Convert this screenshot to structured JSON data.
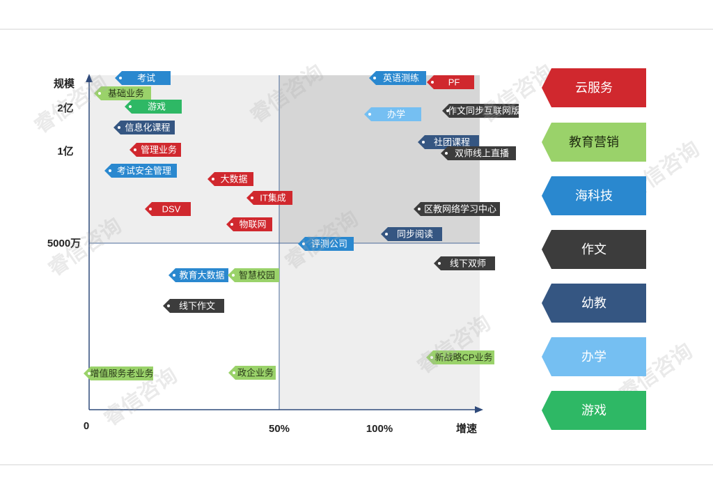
{
  "chart_data": {
    "type": "scatter",
    "title": "",
    "xlabel": "增速",
    "ylabel": "规模",
    "x_ticks": [
      "0",
      "50%",
      "100%"
    ],
    "y_ticks": [
      "5000万",
      "1亿",
      "2亿"
    ],
    "divider_x": "50%",
    "divider_y": "5000万",
    "grid": false,
    "legend_position": "right",
    "categories": [
      {
        "name": "云服务",
        "color": "#d0282e"
      },
      {
        "name": "教育营销",
        "color": "#9ad26a"
      },
      {
        "name": "海科技",
        "color": "#2a88cf"
      },
      {
        "name": "作文",
        "color": "#3c3c3c"
      },
      {
        "name": "幼教",
        "color": "#355682"
      },
      {
        "name": "办学",
        "color": "#75bff2"
      },
      {
        "name": "游戏",
        "color": "#2eb865"
      }
    ],
    "points": [
      {
        "label": "考试",
        "category": "海科技"
      },
      {
        "label": "基础业务",
        "category": "教育营销"
      },
      {
        "label": "游戏",
        "category": "游戏"
      },
      {
        "label": "信息化课程",
        "category": "幼教"
      },
      {
        "label": "管理业务",
        "category": "云服务"
      },
      {
        "label": "考试安全管理",
        "category": "海科技"
      },
      {
        "label": "大数据",
        "category": "云服务"
      },
      {
        "label": "IT集成",
        "category": "云服务"
      },
      {
        "label": "DSV",
        "category": "云服务"
      },
      {
        "label": "物联网",
        "category": "云服务"
      },
      {
        "label": "英语测练",
        "category": "海科技"
      },
      {
        "label": "PF",
        "category": "云服务"
      },
      {
        "label": "办学",
        "category": "办学"
      },
      {
        "label": "作文同步互联网版",
        "category": "作文"
      },
      {
        "label": "社团课程",
        "category": "幼教"
      },
      {
        "label": "双师线上直播",
        "category": "作文"
      },
      {
        "label": "区教网络学习中心",
        "category": "作文"
      },
      {
        "label": "同步阅读",
        "category": "幼教"
      },
      {
        "label": "评测公司",
        "category": "海科技"
      },
      {
        "label": "线下双师",
        "category": "作文"
      },
      {
        "label": "教育大数据",
        "category": "海科技"
      },
      {
        "label": "智慧校园",
        "category": "教育营销"
      },
      {
        "label": "线下作文",
        "category": "作文"
      },
      {
        "label": "新战略CP业务",
        "category": "教育营销"
      },
      {
        "label": "增值服务老业务",
        "category": "教育营销"
      },
      {
        "label": "政企业务",
        "category": "教育营销"
      }
    ]
  },
  "watermark": "睿信咨询"
}
